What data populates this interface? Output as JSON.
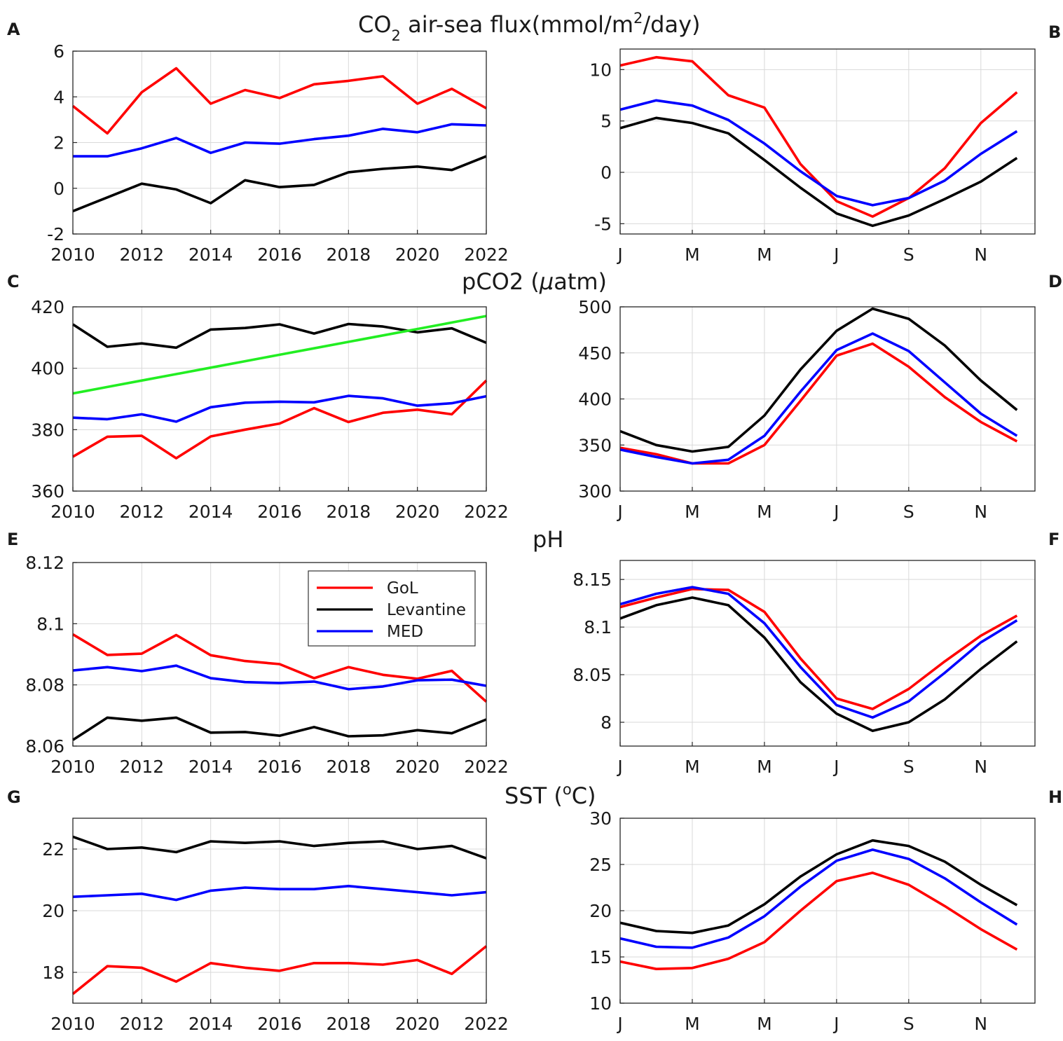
{
  "rows": [
    {
      "title": "CO",
      "title_sub": "2",
      "title_mid": " air-sea  flux(mmol/m",
      "title_sup": "2",
      "title_end": "/day)"
    },
    {
      "title": "pCO2 (",
      "title_greek": "μ",
      "title_end": "atm)"
    },
    {
      "title": "pH"
    },
    {
      "title": "SST (",
      "title_sup": "o",
      "title_end": "C)"
    }
  ],
  "panel_letters": [
    "A",
    "B",
    "C",
    "D",
    "E",
    "F",
    "G",
    "H"
  ],
  "legend": {
    "entries": [
      {
        "name": "GoL",
        "color": "#ff0000"
      },
      {
        "name": "Levantine",
        "color": "#000000"
      },
      {
        "name": "MED",
        "color": "#0000ff"
      }
    ]
  },
  "colors": {
    "GoL": "#ff0000",
    "Levantine": "#000000",
    "MED": "#0000ff",
    "trend": "#22ee22",
    "grid": "#d9d9d9"
  },
  "chart_data": [
    {
      "panel": "A",
      "type": "line",
      "title": "CO2 air-sea flux(mmol/m2/day)",
      "x": [
        2010,
        2011,
        2012,
        2013,
        2014,
        2015,
        2016,
        2017,
        2018,
        2019,
        2020,
        2021,
        2022
      ],
      "xlim": [
        2010,
        2022
      ],
      "xticks": [
        2010,
        2012,
        2014,
        2016,
        2018,
        2020,
        2022
      ],
      "xtick_labels": [
        "2010",
        "2012",
        "2014",
        "2016",
        "2018",
        "2020",
        "2022"
      ],
      "ylim": [
        -2,
        6
      ],
      "yticks": [
        -2,
        0,
        2,
        4,
        6
      ],
      "ytick_labels": [
        "-2",
        "0",
        "2",
        "4",
        "6"
      ],
      "series": [
        {
          "name": "GoL",
          "values": [
            3.6,
            2.4,
            4.2,
            5.25,
            3.7,
            4.3,
            3.95,
            4.55,
            4.7,
            4.9,
            3.7,
            4.35,
            3.5
          ]
        },
        {
          "name": "Levantine",
          "values": [
            -1.0,
            -0.4,
            0.2,
            -0.05,
            -0.65,
            0.35,
            0.05,
            0.15,
            0.7,
            0.85,
            0.95,
            0.8,
            1.4
          ]
        },
        {
          "name": "MED",
          "values": [
            1.4,
            1.4,
            1.75,
            2.2,
            1.55,
            2.0,
            1.95,
            2.15,
            2.3,
            2.6,
            2.45,
            2.8,
            2.75
          ]
        }
      ]
    },
    {
      "panel": "B",
      "type": "line",
      "x": [
        1,
        2,
        3,
        4,
        5,
        6,
        7,
        8,
        9,
        10,
        11,
        12
      ],
      "xlim": [
        1,
        12.5
      ],
      "xticks": [
        1,
        3,
        5,
        7,
        9,
        11
      ],
      "xtick_labels": [
        "J",
        "M",
        "M",
        "J",
        "S",
        "N"
      ],
      "ylim": [
        -6,
        12
      ],
      "yticks": [
        -5,
        0,
        5,
        10
      ],
      "ytick_labels": [
        "-5",
        "0",
        "5",
        "10"
      ],
      "series": [
        {
          "name": "GoL",
          "values": [
            10.4,
            11.2,
            10.8,
            7.5,
            6.3,
            0.8,
            -2.8,
            -4.3,
            -2.5,
            0.4,
            4.8,
            7.8
          ]
        },
        {
          "name": "Levantine",
          "values": [
            4.3,
            5.3,
            4.8,
            3.8,
            1.2,
            -1.5,
            -4.0,
            -5.2,
            -4.2,
            -2.6,
            -0.9,
            1.4
          ]
        },
        {
          "name": "MED",
          "values": [
            6.1,
            7.0,
            6.5,
            5.1,
            2.8,
            0.1,
            -2.3,
            -3.2,
            -2.5,
            -0.8,
            1.8,
            4.0
          ]
        }
      ]
    },
    {
      "panel": "C",
      "type": "line",
      "title": "pCO2 (μatm)",
      "x": [
        2010,
        2011,
        2012,
        2013,
        2014,
        2015,
        2016,
        2017,
        2018,
        2019,
        2020,
        2021,
        2022
      ],
      "xlim": [
        2010,
        2022
      ],
      "xticks": [
        2010,
        2012,
        2014,
        2016,
        2018,
        2020,
        2022
      ],
      "xtick_labels": [
        "2010",
        "2012",
        "2014",
        "2016",
        "2018",
        "2020",
        "2022"
      ],
      "ylim": [
        360,
        420
      ],
      "yticks": [
        360,
        380,
        400,
        420
      ],
      "ytick_labels": [
        "360",
        "380",
        "400",
        "420"
      ],
      "series": [
        {
          "name": "GoL",
          "values": [
            371.2,
            377.7,
            378.0,
            370.7,
            377.8,
            380.0,
            382.0,
            387.0,
            382.5,
            385.5,
            386.5,
            385.0,
            396.0
          ]
        },
        {
          "name": "Levantine",
          "values": [
            414.3,
            407.0,
            408.1,
            406.7,
            412.6,
            413.1,
            414.3,
            411.3,
            414.4,
            413.6,
            411.7,
            413.0,
            408.3
          ]
        },
        {
          "name": "MED",
          "values": [
            383.9,
            383.4,
            385.0,
            382.6,
            387.3,
            388.8,
            389.1,
            388.9,
            391.0,
            390.2,
            387.8,
            388.6,
            390.9
          ]
        },
        {
          "name": "Trend",
          "values": [
            391.8,
            393.9,
            396.0,
            398.1,
            400.2,
            402.3,
            404.4,
            406.5,
            408.6,
            410.7,
            412.8,
            414.9,
            417.0
          ]
        }
      ]
    },
    {
      "panel": "D",
      "type": "line",
      "x": [
        1,
        2,
        3,
        4,
        5,
        6,
        7,
        8,
        9,
        10,
        11,
        12
      ],
      "xlim": [
        1,
        12.5
      ],
      "xticks": [
        1,
        3,
        5,
        7,
        9,
        11
      ],
      "xtick_labels": [
        "J",
        "M",
        "M",
        "J",
        "S",
        "N"
      ],
      "ylim": [
        300,
        500
      ],
      "yticks": [
        300,
        350,
        400,
        450,
        500
      ],
      "ytick_labels": [
        "300",
        "350",
        "400",
        "450",
        "500"
      ],
      "series": [
        {
          "name": "GoL",
          "values": [
            347,
            340,
            330,
            330,
            350,
            398,
            447,
            460,
            435,
            402,
            375,
            354
          ]
        },
        {
          "name": "Levantine",
          "values": [
            365,
            350,
            343,
            348,
            382,
            432,
            474,
            498,
            487,
            458,
            420,
            388
          ]
        },
        {
          "name": "MED",
          "values": [
            345,
            337,
            330,
            334,
            360,
            408,
            453,
            471,
            452,
            418,
            384,
            360
          ]
        }
      ]
    },
    {
      "panel": "E",
      "type": "line",
      "title": "pH",
      "x": [
        2010,
        2011,
        2012,
        2013,
        2014,
        2015,
        2016,
        2017,
        2018,
        2019,
        2020,
        2021,
        2022
      ],
      "xlim": [
        2010,
        2022
      ],
      "xticks": [
        2010,
        2012,
        2014,
        2016,
        2018,
        2020,
        2022
      ],
      "xtick_labels": [
        "2010",
        "2012",
        "2014",
        "2016",
        "2018",
        "2020",
        "2022"
      ],
      "ylim": [
        8.06,
        8.12
      ],
      "yticks": [
        8.06,
        8.08,
        8.1,
        8.12
      ],
      "ytick_labels": [
        "8.06",
        "8.08",
        "8.1",
        "8.12"
      ],
      "legend": "top-right",
      "series": [
        {
          "name": "GoL",
          "values": [
            8.0965,
            8.0898,
            8.0902,
            8.0963,
            8.0897,
            8.0878,
            8.0868,
            8.0822,
            8.0858,
            8.0833,
            8.082,
            8.0846,
            8.0745
          ]
        },
        {
          "name": "Levantine",
          "values": [
            8.062,
            8.0693,
            8.0683,
            8.0693,
            8.0644,
            8.0646,
            8.0634,
            8.0662,
            8.0632,
            8.0635,
            8.0652,
            8.0642,
            8.0687
          ]
        },
        {
          "name": "MED",
          "values": [
            8.0847,
            8.0858,
            8.0845,
            8.0863,
            8.0822,
            8.0809,
            8.0806,
            8.0811,
            8.0786,
            8.0795,
            8.0815,
            8.0817,
            8.0797
          ]
        }
      ]
    },
    {
      "panel": "F",
      "type": "line",
      "x": [
        1,
        2,
        3,
        4,
        5,
        6,
        7,
        8,
        9,
        10,
        11,
        12
      ],
      "xlim": [
        1,
        12.5
      ],
      "xticks": [
        1,
        3,
        5,
        7,
        9,
        11
      ],
      "xtick_labels": [
        "J",
        "M",
        "M",
        "J",
        "S",
        "N"
      ],
      "ylim": [
        7.975,
        8.17
      ],
      "yticks": [
        8,
        8.05,
        8.1,
        8.15
      ],
      "ytick_labels": [
        "8",
        "8.05",
        "8.1",
        "8.15"
      ],
      "series": [
        {
          "name": "GoL",
          "values": [
            8.121,
            8.131,
            8.14,
            8.139,
            8.116,
            8.067,
            8.025,
            8.014,
            8.035,
            8.064,
            8.091,
            8.112
          ]
        },
        {
          "name": "Levantine",
          "values": [
            8.109,
            8.123,
            8.131,
            8.123,
            8.089,
            8.042,
            8.009,
            7.991,
            8.0,
            8.024,
            8.056,
            8.085
          ]
        },
        {
          "name": "MED",
          "values": [
            8.124,
            8.135,
            8.142,
            8.135,
            8.104,
            8.058,
            8.018,
            8.005,
            8.022,
            8.052,
            8.084,
            8.107
          ]
        }
      ]
    },
    {
      "panel": "G",
      "type": "line",
      "title": "SST (oC)",
      "x": [
        2010,
        2011,
        2012,
        2013,
        2014,
        2015,
        2016,
        2017,
        2018,
        2019,
        2020,
        2021,
        2022
      ],
      "xlim": [
        2010,
        2022
      ],
      "xticks": [
        2010,
        2012,
        2014,
        2016,
        2018,
        2020,
        2022
      ],
      "xtick_labels": [
        "2010",
        "2012",
        "2014",
        "2016",
        "2018",
        "2020",
        "2022"
      ],
      "ylim": [
        17,
        23
      ],
      "yticks": [
        18,
        20,
        22
      ],
      "ytick_labels": [
        "18",
        "20",
        "22"
      ],
      "series": [
        {
          "name": "GoL",
          "values": [
            17.3,
            18.2,
            18.15,
            17.7,
            18.3,
            18.15,
            18.05,
            18.3,
            18.3,
            18.25,
            18.4,
            17.95,
            18.85
          ]
        },
        {
          "name": "Levantine",
          "values": [
            22.4,
            22.0,
            22.05,
            21.9,
            22.25,
            22.2,
            22.25,
            22.1,
            22.2,
            22.25,
            22.0,
            22.1,
            21.7
          ]
        },
        {
          "name": "MED",
          "values": [
            20.45,
            20.5,
            20.55,
            20.35,
            20.65,
            20.75,
            20.7,
            20.7,
            20.8,
            20.7,
            20.6,
            20.5,
            20.6
          ]
        }
      ]
    },
    {
      "panel": "H",
      "type": "line",
      "x": [
        1,
        2,
        3,
        4,
        5,
        6,
        7,
        8,
        9,
        10,
        11,
        12
      ],
      "xlim": [
        1,
        12.5
      ],
      "xticks": [
        1,
        3,
        5,
        7,
        9,
        11
      ],
      "xtick_labels": [
        "J",
        "M",
        "M",
        "J",
        "S",
        "N"
      ],
      "ylim": [
        10,
        30
      ],
      "yticks": [
        10,
        15,
        20,
        25,
        30
      ],
      "ytick_labels": [
        "10",
        "15",
        "20",
        "25",
        "30"
      ],
      "series": [
        {
          "name": "GoL",
          "values": [
            14.5,
            13.7,
            13.8,
            14.8,
            16.6,
            20.0,
            23.2,
            24.1,
            22.8,
            20.5,
            18.0,
            15.8
          ]
        },
        {
          "name": "Levantine",
          "values": [
            18.7,
            17.8,
            17.6,
            18.4,
            20.7,
            23.7,
            26.1,
            27.6,
            27.0,
            25.3,
            22.8,
            20.6
          ]
        },
        {
          "name": "MED",
          "values": [
            17.0,
            16.1,
            16.0,
            17.1,
            19.4,
            22.6,
            25.4,
            26.6,
            25.6,
            23.5,
            20.9,
            18.5
          ]
        }
      ]
    }
  ]
}
